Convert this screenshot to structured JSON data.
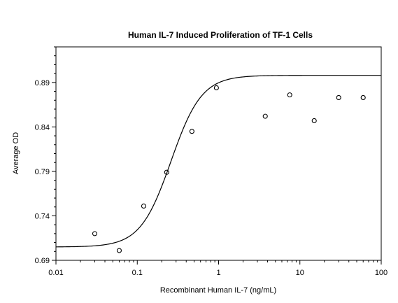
{
  "chart_data": {
    "type": "scatter",
    "title": "Human IL-7 Induced Proliferation of TF-1 Cells",
    "xlabel": "Recombinant Human IL-7 (ng/mL)",
    "ylabel": "Average OD",
    "xscale": "log",
    "xlim": [
      0.01,
      100
    ],
    "ylim": [
      0.69,
      0.93
    ],
    "grid": false,
    "x_ticks": [
      {
        "value": 0.01,
        "label": "0.01"
      },
      {
        "value": 0.1,
        "label": "0.1"
      },
      {
        "value": 1,
        "label": "1"
      },
      {
        "value": 10,
        "label": "10"
      },
      {
        "value": 100,
        "label": "100"
      }
    ],
    "y_ticks": [
      {
        "value": 0.69,
        "label": "0.69"
      },
      {
        "value": 0.74,
        "label": "0.74"
      },
      {
        "value": 0.79,
        "label": "0.79"
      },
      {
        "value": 0.84,
        "label": "0.84"
      },
      {
        "value": 0.89,
        "label": "0.89"
      }
    ],
    "points": [
      {
        "x": 0.03,
        "y": 0.72
      },
      {
        "x": 0.06,
        "y": 0.701
      },
      {
        "x": 0.12,
        "y": 0.751
      },
      {
        "x": 0.23,
        "y": 0.789
      },
      {
        "x": 0.47,
        "y": 0.835
      },
      {
        "x": 0.94,
        "y": 0.884
      },
      {
        "x": 3.75,
        "y": 0.852
      },
      {
        "x": 7.5,
        "y": 0.876
      },
      {
        "x": 15,
        "y": 0.847
      },
      {
        "x": 30,
        "y": 0.873
      },
      {
        "x": 60,
        "y": 0.873
      }
    ],
    "fit_curve": {
      "model": "4PL",
      "bottom": 0.705,
      "top": 0.898,
      "ec50": 0.26,
      "hill": 2.3
    }
  }
}
